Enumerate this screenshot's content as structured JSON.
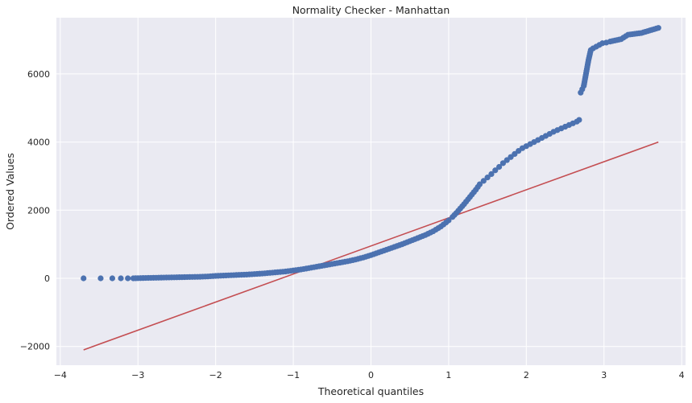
{
  "chart_data": {
    "type": "scatter",
    "title": "Normality Checker - Manhattan",
    "xlabel": "Theoretical quantiles",
    "ylabel": "Ordered Values",
    "xlim": [
      -4.05,
      4.05
    ],
    "ylim": [
      -2550,
      7650
    ],
    "xticks": [
      -4,
      -3,
      -2,
      -1,
      0,
      1,
      2,
      3,
      4
    ],
    "xtick_labels": [
      "−4",
      "−3",
      "−2",
      "−1",
      "0",
      "1",
      "2",
      "3",
      "4"
    ],
    "yticks": [
      -2000,
      0,
      2000,
      4000,
      6000
    ],
    "ytick_labels": [
      "−2000",
      "0",
      "2000",
      "4000",
      "6000"
    ],
    "grid": true,
    "background": "#eaeaf2",
    "grid_color": "#ffffff",
    "point_color": "#4c72b0",
    "line_color": "#c44e52",
    "series": [
      {
        "kind": "points",
        "x": [
          -3.7,
          -3.48,
          -3.33,
          -3.22,
          -3.13,
          -3.06,
          -3.0,
          -2.9,
          -2.8,
          -2.7,
          -2.6,
          -2.5,
          -2.4,
          -2.3,
          -2.2,
          -2.1,
          -2.0,
          -1.9,
          -1.8,
          -1.7,
          -1.6,
          -1.5,
          -1.4,
          -1.3,
          -1.2,
          -1.1,
          -1.0,
          -0.9,
          -0.8,
          -0.7,
          -0.6,
          -0.5,
          -0.4,
          -0.3,
          -0.2,
          -0.1,
          0.0,
          0.1,
          0.2,
          0.3,
          0.4,
          0.5,
          0.6,
          0.7,
          0.8,
          0.9,
          1.0,
          1.05,
          1.1,
          1.15,
          1.2,
          1.25,
          1.3,
          1.35,
          1.4,
          1.45,
          1.5,
          1.55,
          1.6,
          1.65,
          1.7,
          1.75,
          1.8,
          1.85,
          1.9,
          1.95,
          2.0,
          2.05,
          2.1,
          2.15,
          2.2,
          2.25,
          2.3,
          2.35,
          2.4,
          2.45,
          2.5,
          2.55,
          2.6,
          2.65,
          2.68,
          2.7,
          2.72,
          2.74,
          2.76,
          2.78,
          2.8,
          2.83,
          2.86,
          2.9,
          2.94,
          2.98,
          3.03,
          3.08,
          3.14,
          3.22,
          3.31,
          3.48,
          3.7
        ],
        "y": [
          0,
          0,
          0,
          0,
          0,
          0,
          5,
          10,
          15,
          20,
          25,
          30,
          35,
          40,
          45,
          55,
          70,
          80,
          90,
          100,
          110,
          125,
          140,
          160,
          180,
          200,
          230,
          260,
          300,
          340,
          380,
          420,
          460,
          500,
          550,
          610,
          680,
          760,
          840,
          920,
          1000,
          1090,
          1180,
          1270,
          1380,
          1520,
          1700,
          1800,
          1920,
          2050,
          2180,
          2320,
          2460,
          2600,
          2760,
          2860,
          2960,
          3060,
          3170,
          3270,
          3380,
          3470,
          3560,
          3650,
          3740,
          3820,
          3880,
          3940,
          4000,
          4060,
          4120,
          4180,
          4240,
          4300,
          4350,
          4400,
          4450,
          4500,
          4550,
          4600,
          4650,
          5450,
          5550,
          5650,
          5900,
          6150,
          6400,
          6700,
          6750,
          6800,
          6850,
          6900,
          6920,
          6950,
          6980,
          7020,
          7150,
          7200,
          7350
        ]
      },
      {
        "kind": "fit-line",
        "x": [
          -3.7,
          3.7
        ],
        "y": [
          -2100,
          4000
        ]
      }
    ]
  }
}
